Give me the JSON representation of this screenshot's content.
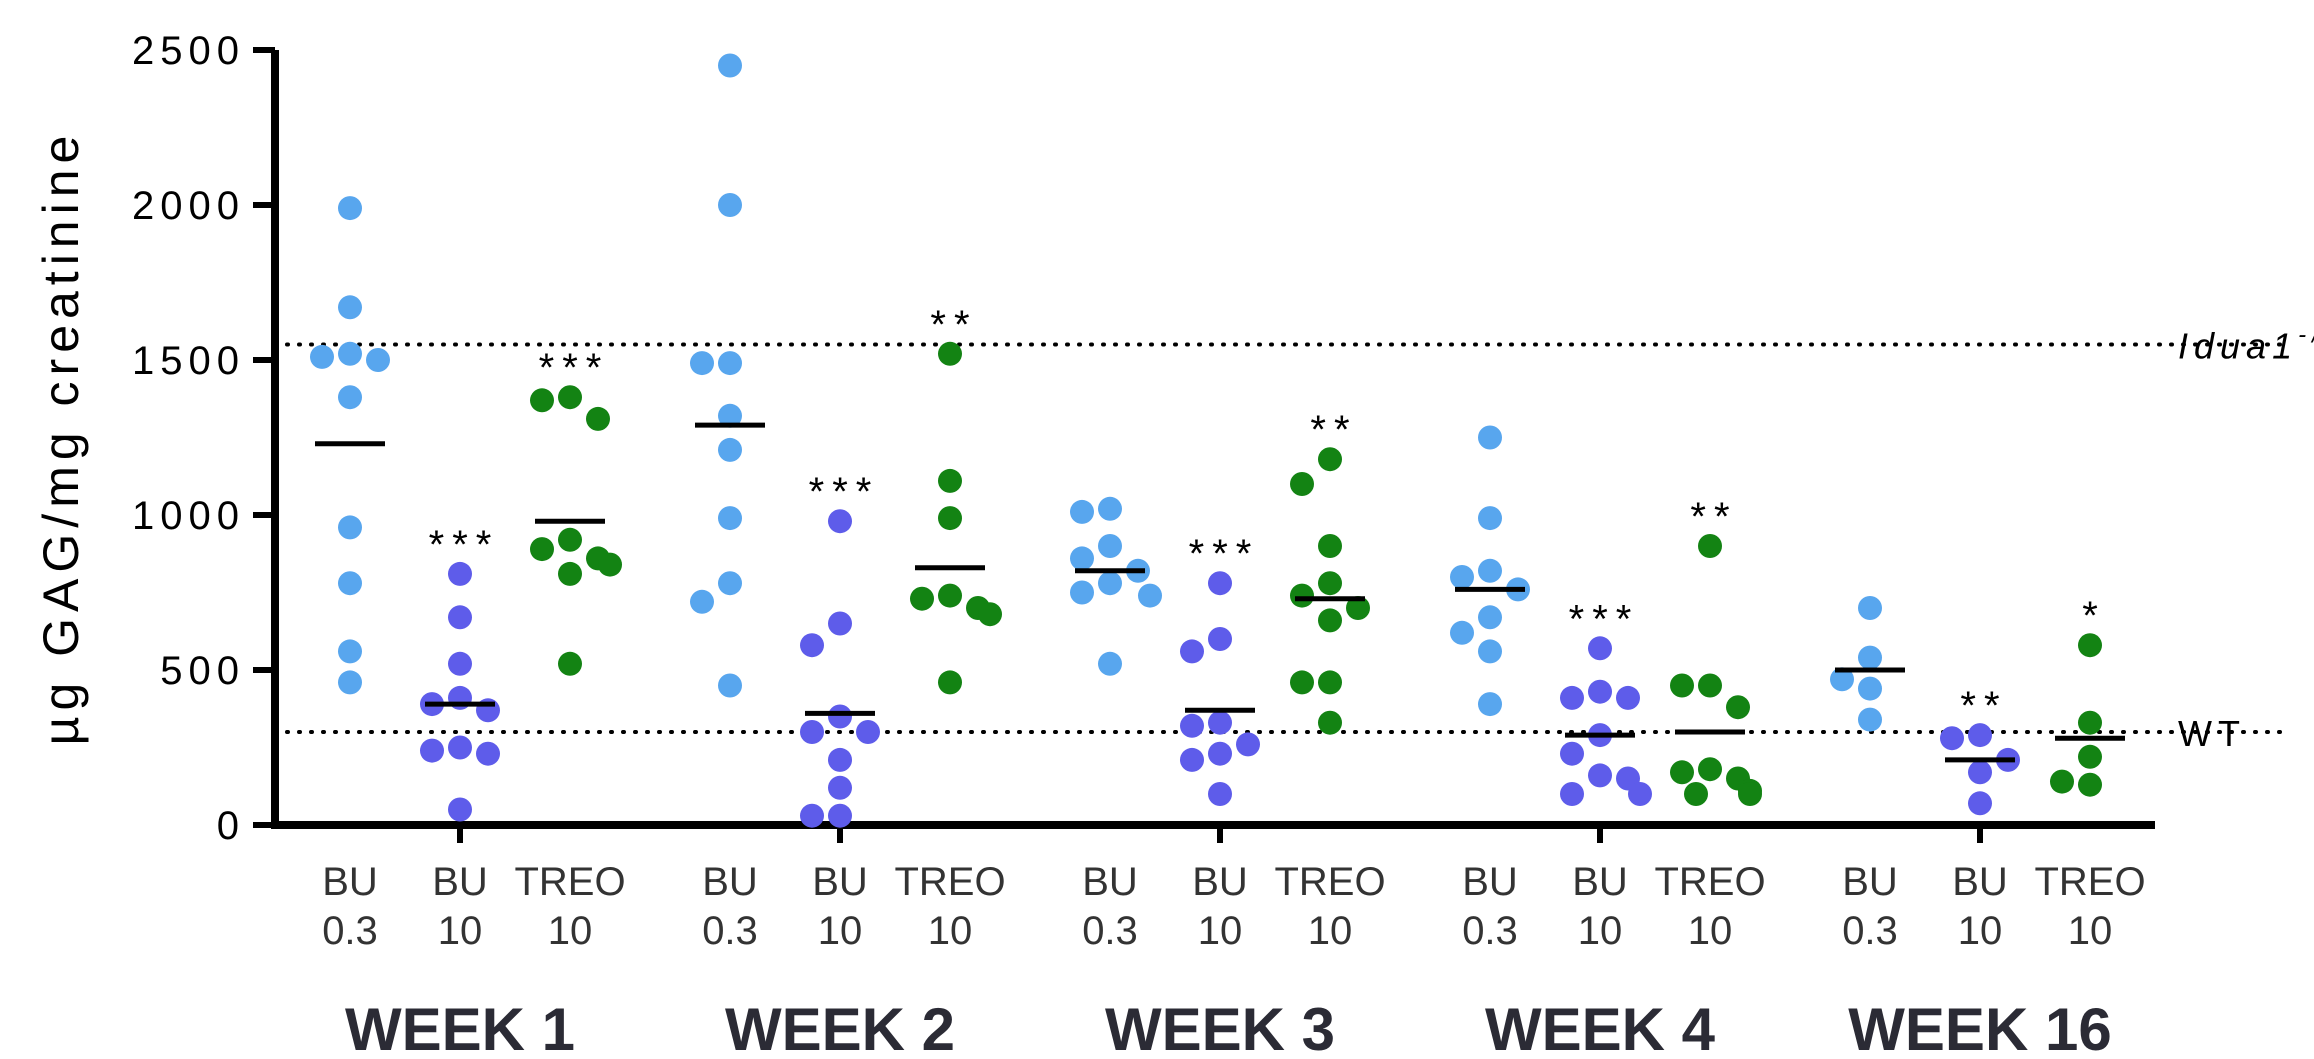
{
  "chart_data": {
    "type": "scatter",
    "ylabel": "µg GAG/mg creatinine",
    "ylim": [
      0,
      2500
    ],
    "yticks": [
      "0",
      "500",
      "1000",
      "1500",
      "2000",
      "2500"
    ],
    "reference_lines": [
      {
        "label": "Idua1",
        "label_sup": "-/-",
        "value": 1550,
        "style": "dotted"
      },
      {
        "label": "WT",
        "value": 300,
        "style": "dotted"
      }
    ],
    "series_colors": {
      "BU 0.3": "#58a6ee",
      "BU 10": "#5e5cea",
      "TREO 10": "#138313"
    },
    "groups": [
      {
        "week": "WEEK 1",
        "conditions": [
          {
            "label_line1": "BU",
            "label_line2": "0.3",
            "series": "BU 0.3",
            "mean": 1230,
            "significance": "",
            "points": [
              1990,
              1670,
              1520,
              1510,
              1500,
              1380,
              960,
              780,
              560,
              460
            ]
          },
          {
            "label_line1": "BU",
            "label_line2": "10",
            "series": "BU 10",
            "mean": 390,
            "significance": "***",
            "points": [
              810,
              670,
              520,
              410,
              390,
              370,
              250,
              240,
              230,
              50
            ]
          },
          {
            "label_line1": "TREO",
            "label_line2": "10",
            "series": "TREO 10",
            "mean": 980,
            "significance": "***",
            "points": [
              1380,
              1370,
              1310,
              920,
              890,
              860,
              840,
              810,
              520
            ]
          }
        ]
      },
      {
        "week": "WEEK 2",
        "conditions": [
          {
            "label_line1": "BU",
            "label_line2": "0.3",
            "series": "BU 0.3",
            "mean": 1290,
            "significance": "",
            "points": [
              2450,
              2000,
              1490,
              1490,
              1320,
              1210,
              990,
              780,
              720,
              450
            ]
          },
          {
            "label_line1": "BU",
            "label_line2": "10",
            "series": "BU 10",
            "mean": 360,
            "significance": "***",
            "points": [
              980,
              650,
              580,
              350,
              300,
              300,
              210,
              120,
              30,
              30
            ]
          },
          {
            "label_line1": "TREO",
            "label_line2": "10",
            "series": "TREO 10",
            "mean": 830,
            "significance": "**",
            "points": [
              1520,
              1110,
              990,
              740,
              730,
              700,
              680,
              460
            ]
          }
        ]
      },
      {
        "week": "WEEK 3",
        "conditions": [
          {
            "label_line1": "BU",
            "label_line2": "0.3",
            "series": "BU 0.3",
            "mean": 820,
            "significance": "",
            "points": [
              1020,
              1010,
              900,
              860,
              820,
              780,
              750,
              740,
              520
            ]
          },
          {
            "label_line1": "BU",
            "label_line2": "10",
            "series": "BU 10",
            "mean": 370,
            "significance": "***",
            "points": [
              780,
              600,
              560,
              330,
              320,
              260,
              230,
              210,
              100
            ]
          },
          {
            "label_line1": "TREO",
            "label_line2": "10",
            "series": "TREO 10",
            "mean": 730,
            "significance": "**",
            "points": [
              1180,
              1100,
              900,
              780,
              740,
              700,
              660,
              460,
              460,
              330
            ]
          }
        ]
      },
      {
        "week": "WEEK 4",
        "conditions": [
          {
            "label_line1": "BU",
            "label_line2": "0.3",
            "series": "BU 0.3",
            "mean": 760,
            "significance": "",
            "points": [
              1250,
              990,
              820,
              800,
              760,
              670,
              620,
              560,
              390
            ]
          },
          {
            "label_line1": "BU",
            "label_line2": "10",
            "series": "BU 10",
            "mean": 290,
            "significance": "***",
            "points": [
              570,
              430,
              410,
              410,
              290,
              230,
              160,
              150,
              100,
              100
            ]
          },
          {
            "label_line1": "TREO",
            "label_line2": "10",
            "series": "TREO 10",
            "mean": 300,
            "significance": "**",
            "points": [
              900,
              450,
              450,
              380,
              180,
              170,
              150,
              110,
              100,
              100
            ]
          }
        ]
      },
      {
        "week": "WEEK 16",
        "conditions": [
          {
            "label_line1": "BU",
            "label_line2": "0.3",
            "series": "BU 0.3",
            "mean": 500,
            "significance": "",
            "points": [
              700,
              540,
              470,
              440,
              340
            ]
          },
          {
            "label_line1": "BU",
            "label_line2": "10",
            "series": "BU 10",
            "mean": 210,
            "significance": "**",
            "points": [
              290,
              280,
              210,
              170,
              70
            ]
          },
          {
            "label_line1": "TREO",
            "label_line2": "10",
            "series": "TREO 10",
            "mean": 280,
            "significance": "*",
            "points": [
              580,
              330,
              220,
              140,
              130
            ]
          }
        ]
      }
    ]
  }
}
